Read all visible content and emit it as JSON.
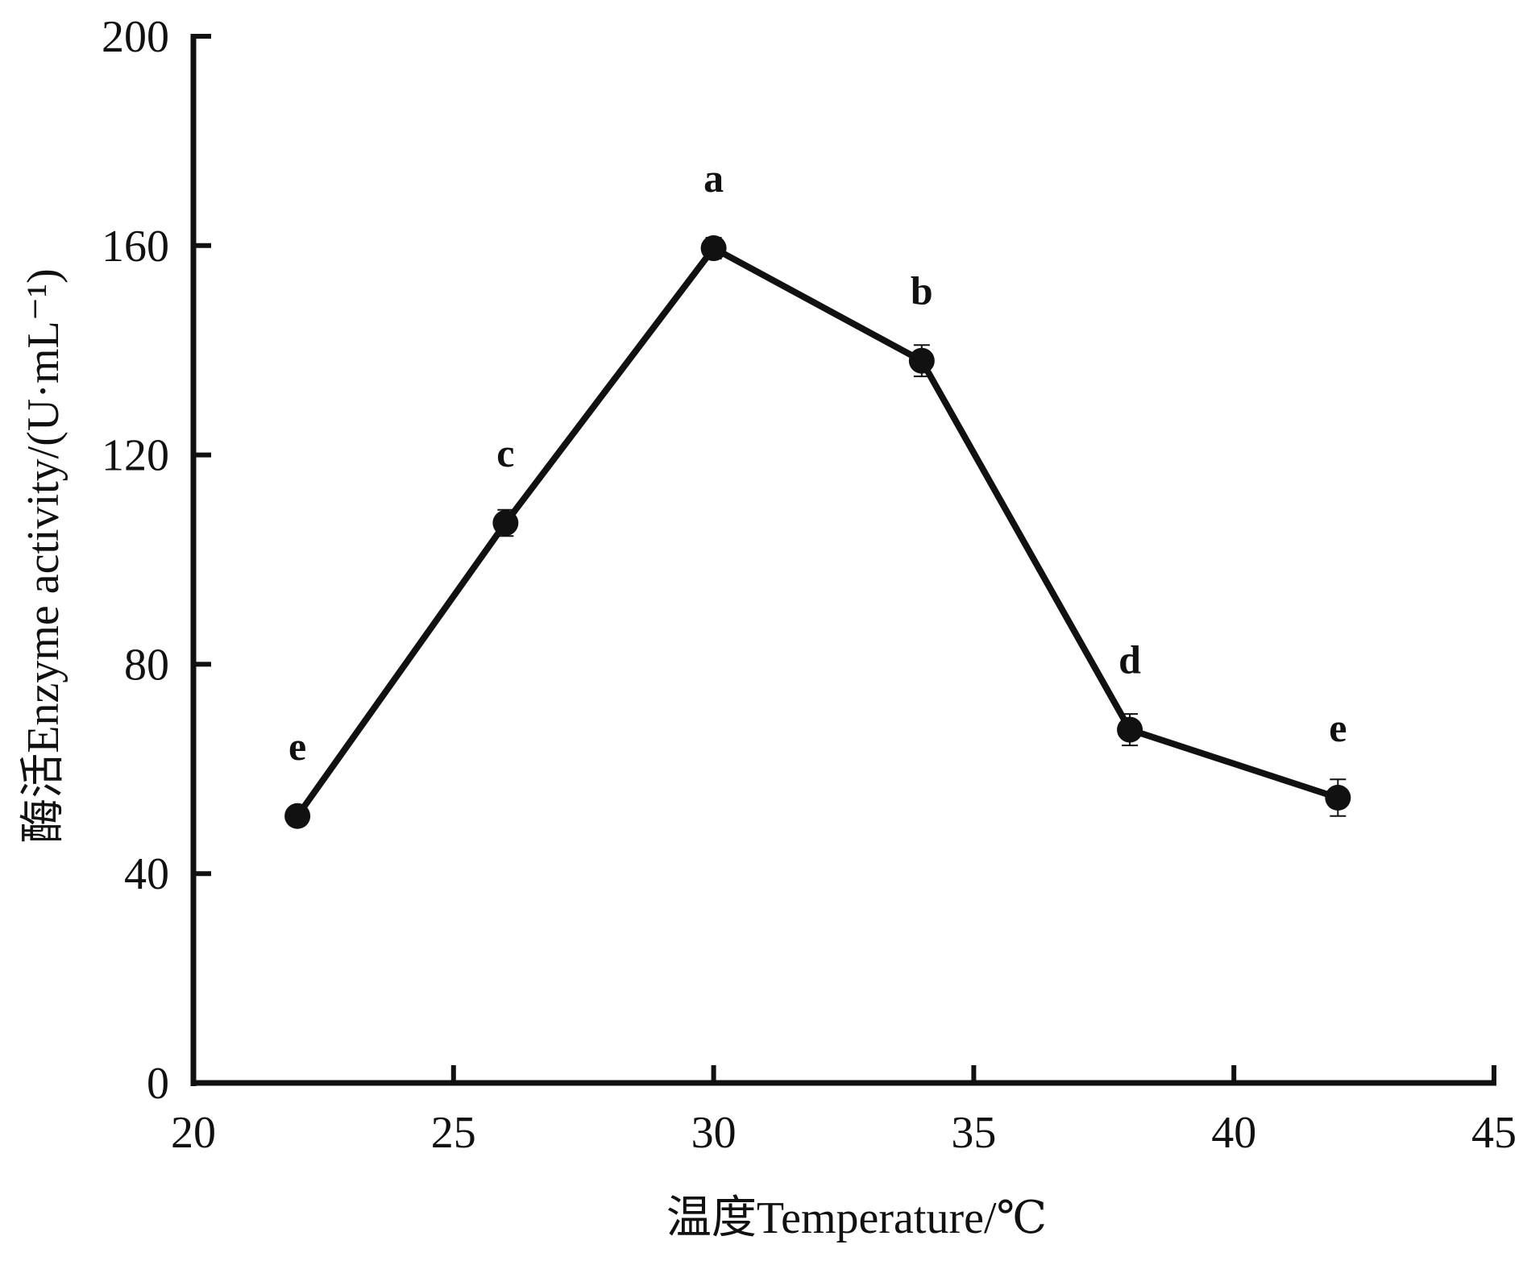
{
  "chart_data": {
    "type": "line",
    "title": "",
    "xlabel": "温度Temperature/℃",
    "ylabel": "酶活Enzyme activity/(U·mL⁻¹)",
    "xlim": [
      20,
      45
    ],
    "ylim": [
      0,
      200
    ],
    "xticks": [
      20,
      25,
      30,
      35,
      40,
      45
    ],
    "yticks": [
      0,
      40,
      80,
      120,
      160,
      200
    ],
    "grid": false,
    "series": [
      {
        "name": "Enzyme activity",
        "x": [
          22,
          26,
          30,
          34,
          38,
          42
        ],
        "y": [
          51,
          107,
          159.5,
          138,
          67.5,
          54.5
        ],
        "error": [
          1.5,
          2.5,
          2,
          3,
          3,
          3.5
        ],
        "labels": [
          "e",
          "c",
          "a",
          "b",
          "d",
          "e"
        ],
        "color": "#111111"
      }
    ]
  }
}
